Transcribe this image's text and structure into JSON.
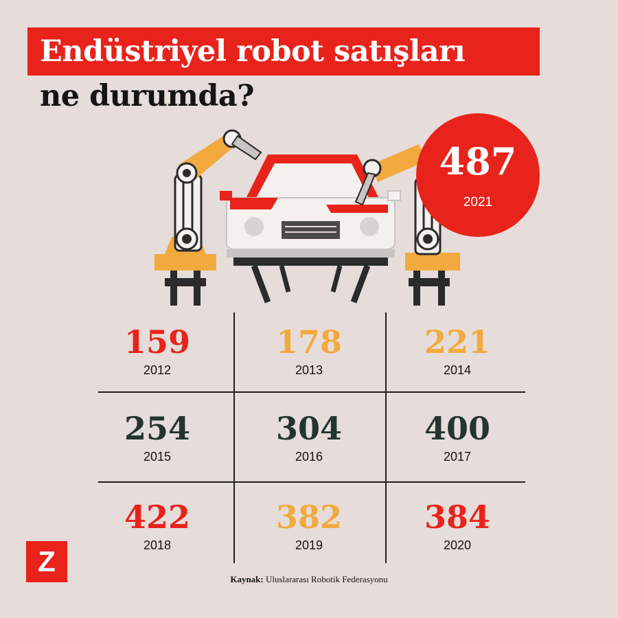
{
  "title": {
    "line1": "Endüstriyel robot satışları",
    "line2": "ne durumda?"
  },
  "chart_data": {
    "type": "table",
    "title": "Endüstriyel robot satışları ne durumda?",
    "highlight": {
      "year": "2021",
      "value": 487
    },
    "categories": [
      "2012",
      "2013",
      "2014",
      "2015",
      "2016",
      "2017",
      "2018",
      "2019",
      "2020",
      "2021"
    ],
    "values": [
      159,
      178,
      221,
      254,
      304,
      400,
      422,
      382,
      384,
      487
    ],
    "value_colors": [
      "#e8231b",
      "#f2aa3e",
      "#f2aa3e",
      "#23352f",
      "#23352f",
      "#23352f",
      "#e8231b",
      "#f2aa3e",
      "#e8231b",
      "#ffffff"
    ]
  },
  "badge": {
    "value": "487",
    "year": "2021"
  },
  "grid": [
    {
      "value": "159",
      "year": "2012"
    },
    {
      "value": "178",
      "year": "2013"
    },
    {
      "value": "221",
      "year": "2014"
    },
    {
      "value": "254",
      "year": "2015"
    },
    {
      "value": "304",
      "year": "2016"
    },
    {
      "value": "400",
      "year": "2017"
    },
    {
      "value": "422",
      "year": "2018"
    },
    {
      "value": "382",
      "year": "2019"
    },
    {
      "value": "384",
      "year": "2020"
    }
  ],
  "source": {
    "label": "Kaynak:",
    "text": "Uluslararası Robotik Federasyonu"
  },
  "logo": {
    "letter": "Z"
  },
  "colors": {
    "background": "#e6dcd9",
    "red": "#e8231b",
    "orange": "#f2aa3e",
    "dark": "#23352f",
    "text": "#141414"
  },
  "icons": [
    "robot-arm-left-icon",
    "robot-arm-right-icon",
    "car-icon",
    "assembly-stand-icon"
  ]
}
